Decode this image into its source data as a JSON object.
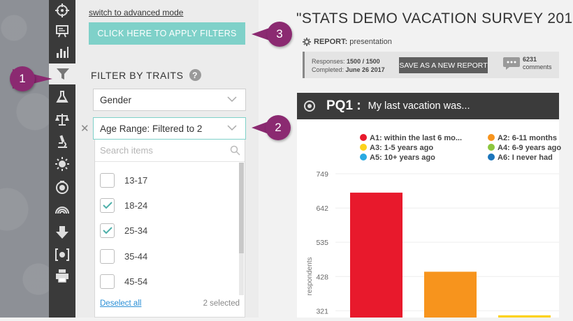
{
  "toolbar": {
    "tools": [
      "target-icon",
      "presentation-icon",
      "bar-chart-icon",
      "filter-icon",
      "flask-icon",
      "balance-scale-icon",
      "microscope-icon",
      "sun-icon",
      "camera-icon",
      "rainbow-icon",
      "download-arrow-icon",
      "bracket-chart-icon",
      "pie-chart-icon",
      "print-icon"
    ]
  },
  "panel": {
    "advanced_link": "switch to advanced mode",
    "apply_button": "CLICK HERE TO APPLY FILTERS",
    "traits_title": "FILTER BY TRAITS",
    "help": "?",
    "gender_select": "Gender",
    "age_select": "Age Range: Filtered to 2",
    "remove": "✕",
    "dropdown": {
      "search_placeholder": "Search items",
      "options": [
        {
          "label": "13-17",
          "checked": false
        },
        {
          "label": "18-24",
          "checked": true
        },
        {
          "label": "25-34",
          "checked": true
        },
        {
          "label": "35-44",
          "checked": false
        },
        {
          "label": "45-54",
          "checked": false
        }
      ],
      "deselect": "Deselect all",
      "selected_count": "2 selected"
    }
  },
  "callouts": [
    "1",
    "2",
    "3"
  ],
  "colors": {
    "accent": "#7fd1c9",
    "callout": "#8b2a71"
  },
  "report": {
    "title": "\"STATS DEMO VACATION SURVEY 201",
    "report_label": "REPORT:",
    "report_name": "presentation",
    "responses_label": "Responses:",
    "responses_value": "1500 / 1500",
    "completed_label": "Completed:",
    "completed_value": "June 26 2017",
    "save_button": "SAVE AS A NEW REPORT",
    "comments_count": "6231",
    "comments_label": "comments",
    "question_id": "PQ1 :",
    "question_text": "My last vacation was..."
  },
  "chart_data": {
    "type": "bar",
    "categories": [
      "A1",
      "A2",
      "A3"
    ],
    "values": [
      690,
      443,
      307
    ],
    "ylabel": "respondents",
    "yticks": [
      321,
      428,
      535,
      642,
      749
    ],
    "ylim": [
      300,
      749
    ],
    "legend": [
      {
        "label": "A1: within the last 6 mo...",
        "color": "#e8192c"
      },
      {
        "label": "A2: 6-11 months",
        "color": "#f7941d"
      },
      {
        "label": "A3: 1-5 years ago",
        "color": "#fcd21c"
      },
      {
        "label": "A4: 6-9 years ago",
        "color": "#8cc63e"
      },
      {
        "label": "A5: 10+ years ago",
        "color": "#29aae1"
      },
      {
        "label": "A6: I never had",
        "color": "#1b75bb"
      }
    ],
    "bar_colors": [
      "#e8192c",
      "#f7941d",
      "#fcd21c"
    ]
  }
}
